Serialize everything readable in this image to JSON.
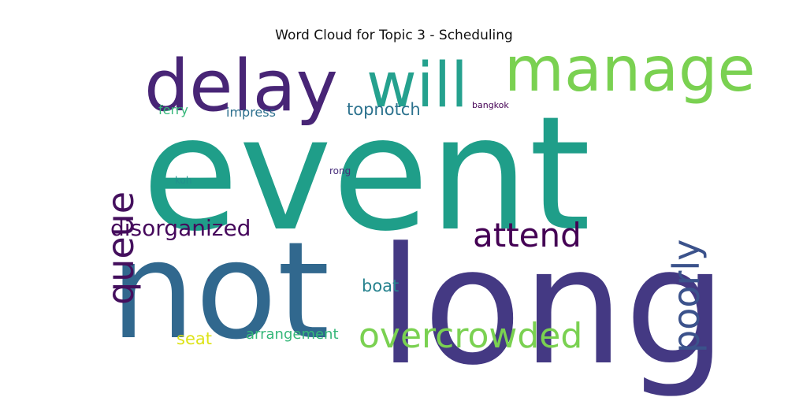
{
  "title": "Word Cloud for Topic 3 - Scheduling",
  "words": {
    "event": {
      "text": "event",
      "color": "#1f9e89"
    },
    "not": {
      "text": "not",
      "color": "#31688e"
    },
    "long": {
      "text": "long",
      "color": "#443983"
    },
    "delay": {
      "text": "delay",
      "color": "#482576"
    },
    "will": {
      "text": "will",
      "color": "#25a18e"
    },
    "manage": {
      "text": "manage",
      "color": "#7ad151"
    },
    "queue": {
      "text": "queue",
      "color": "#440f5d"
    },
    "poorly": {
      "text": "poorly",
      "color": "#3b528b"
    },
    "disorganized": {
      "text": "disorganized",
      "color": "#46085c"
    },
    "attend": {
      "text": "attend",
      "color": "#440154"
    },
    "overcrowded": {
      "text": "overcrowded",
      "color": "#7ad151"
    },
    "topnotch": {
      "text": "topnotch",
      "color": "#2c728e"
    },
    "impress": {
      "text": "impress",
      "color": "#2d708e"
    },
    "ferry": {
      "text": "ferry",
      "color": "#35b779"
    },
    "bangkok": {
      "text": "bangkok",
      "color": "#440154"
    },
    "koh": {
      "text": "koh",
      "color": "#21918c"
    },
    "rong": {
      "text": "rong",
      "color": "#472d7b"
    },
    "boat": {
      "text": "boat",
      "color": "#26828e"
    },
    "seat": {
      "text": "seat",
      "color": "#dde318"
    },
    "arrangement": {
      "text": "arrangement",
      "color": "#35b779"
    }
  }
}
